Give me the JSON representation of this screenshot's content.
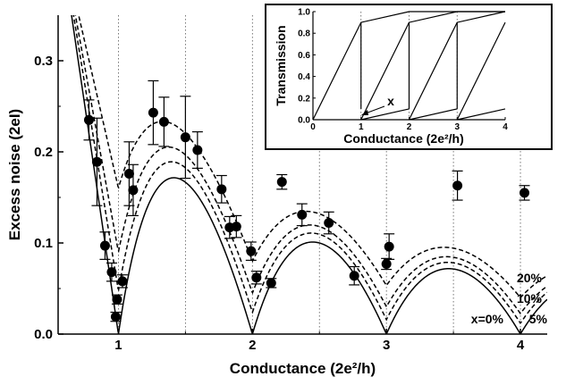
{
  "chart_data": [
    {
      "type": "scatter",
      "xlabel": "Conductance (2e²/h)",
      "ylabel": "Excess noise (2eI)",
      "xlim": [
        0.55,
        4.2
      ],
      "ylim": [
        0.0,
        0.35
      ],
      "x_ticks": [
        "1",
        "2",
        "3",
        "4"
      ],
      "y_ticks": [
        "0.0",
        "0.1",
        "0.2",
        "0.3"
      ],
      "grid": "dotted vertical lines at half-integer and integer conductance",
      "series": [
        {
          "type": "scatter-with-error-bars",
          "points": [
            {
              "x": 0.78,
              "y": 0.235,
              "err": 0.022
            },
            {
              "x": 0.84,
              "y": 0.189,
              "err": 0.048
            },
            {
              "x": 0.9,
              "y": 0.097,
              "err": 0.015
            },
            {
              "x": 0.95,
              "y": 0.068,
              "err": 0.01
            },
            {
              "x": 0.98,
              "y": 0.019,
              "err": 0.005
            },
            {
              "x": 0.99,
              "y": 0.038,
              "err": 0.005
            },
            {
              "x": 1.03,
              "y": 0.058,
              "err": 0.007
            },
            {
              "x": 1.08,
              "y": 0.176,
              "err": 0.035
            },
            {
              "x": 1.11,
              "y": 0.158,
              "err": 0.028
            },
            {
              "x": 1.26,
              "y": 0.243,
              "err": 0.035
            },
            {
              "x": 1.34,
              "y": 0.233,
              "err": 0.027
            },
            {
              "x": 1.5,
              "y": 0.216,
              "err": 0.045
            },
            {
              "x": 1.59,
              "y": 0.202,
              "err": 0.02
            },
            {
              "x": 1.77,
              "y": 0.159,
              "err": 0.015
            },
            {
              "x": 1.83,
              "y": 0.117,
              "err": 0.012
            },
            {
              "x": 1.88,
              "y": 0.118,
              "err": 0.012
            },
            {
              "x": 1.99,
              "y": 0.091,
              "err": 0.01
            },
            {
              "x": 2.03,
              "y": 0.062,
              "err": 0.007
            },
            {
              "x": 2.14,
              "y": 0.056,
              "err": 0.005
            },
            {
              "x": 2.22,
              "y": 0.167,
              "err": 0.008
            },
            {
              "x": 2.37,
              "y": 0.131,
              "err": 0.012
            },
            {
              "x": 2.57,
              "y": 0.122,
              "err": 0.012
            },
            {
              "x": 2.76,
              "y": 0.064,
              "err": 0.01
            },
            {
              "x": 3.0,
              "y": 0.077,
              "err": 0.006
            },
            {
              "x": 3.02,
              "y": 0.096,
              "err": 0.014
            },
            {
              "x": 3.53,
              "y": 0.163,
              "err": 0.016
            },
            {
              "x": 4.03,
              "y": 0.155,
              "err": 0.008
            }
          ]
        },
        {
          "type": "line",
          "style": "solid",
          "x_param": 0.0
        },
        {
          "type": "line",
          "style": "dashed",
          "x_param": 0.05
        },
        {
          "type": "line",
          "style": "dashed",
          "x_param": 0.1
        },
        {
          "type": "line",
          "style": "dashed",
          "x_param": 0.2
        }
      ],
      "annotations": [
        "20%",
        "10%",
        "5%",
        "x=0%"
      ]
    },
    {
      "type": "line",
      "xlabel": "Conductance (2e²/h)",
      "ylabel": "Transmission",
      "xlim": [
        0,
        4
      ],
      "ylim": [
        0,
        1
      ],
      "x_ticks": [
        "0",
        "1",
        "2",
        "3",
        "4"
      ],
      "y_ticks": [
        "0.0",
        "0.2",
        "0.4",
        "0.6",
        "0.8",
        "1.0"
      ],
      "annotations": [
        "x"
      ],
      "x_param": 0.1
    }
  ]
}
